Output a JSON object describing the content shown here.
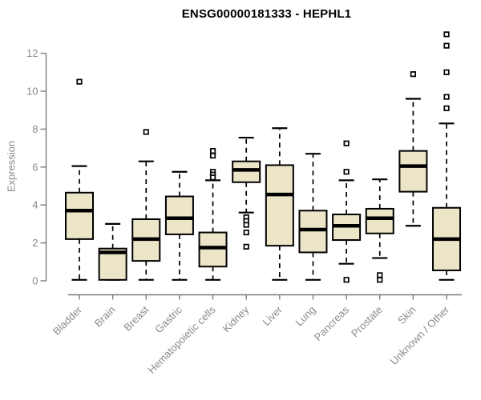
{
  "chart_data": {
    "type": "boxplot",
    "title": "ENSG00000181333 - HEPHL1",
    "ylabel": "Expression",
    "xlabel": "",
    "ylim": [
      0,
      13.2
    ],
    "yticks": [
      0,
      2,
      4,
      6,
      8,
      10,
      12
    ],
    "grid": false,
    "legend": "none",
    "categories": [
      "Bladder",
      "Brain",
      "Breast",
      "Gastric",
      "Hematopoietic cells",
      "Kidney",
      "Liver",
      "Lung",
      "Pancreas",
      "Prostate",
      "Skin",
      "Unknown / Other"
    ],
    "boxes": [
      {
        "category": "Bladder",
        "whisker_low": 0.05,
        "q1": 2.2,
        "median": 3.7,
        "q3": 4.65,
        "whisker_high": 6.05,
        "outliers": [
          10.5
        ]
      },
      {
        "category": "Brain",
        "whisker_low": 0.05,
        "q1": 0.05,
        "median": 1.5,
        "q3": 1.7,
        "whisker_high": 3.0,
        "outliers": []
      },
      {
        "category": "Breast",
        "whisker_low": 0.05,
        "q1": 1.05,
        "median": 2.2,
        "q3": 3.25,
        "whisker_high": 6.3,
        "outliers": [
          7.85
        ]
      },
      {
        "category": "Gastric",
        "whisker_low": 0.05,
        "q1": 2.45,
        "median": 3.3,
        "q3": 4.45,
        "whisker_high": 5.75,
        "outliers": []
      },
      {
        "category": "Hematopoietic cells",
        "whisker_low": 0.05,
        "q1": 0.75,
        "median": 1.75,
        "q3": 2.55,
        "whisker_high": 5.3,
        "outliers": [
          6.85,
          6.6,
          5.75,
          5.6,
          5.45
        ]
      },
      {
        "category": "Kidney",
        "whisker_low": 3.6,
        "q1": 5.2,
        "median": 5.85,
        "q3": 6.3,
        "whisker_high": 7.55,
        "outliers": [
          3.35,
          3.15,
          2.95,
          2.55,
          1.8
        ]
      },
      {
        "category": "Liver",
        "whisker_low": 0.05,
        "q1": 1.85,
        "median": 4.55,
        "q3": 6.1,
        "whisker_high": 8.05,
        "outliers": []
      },
      {
        "category": "Lung",
        "whisker_low": 0.05,
        "q1": 1.5,
        "median": 2.7,
        "q3": 3.7,
        "whisker_high": 6.7,
        "outliers": []
      },
      {
        "category": "Pancreas",
        "whisker_low": 0.9,
        "q1": 2.15,
        "median": 2.9,
        "q3": 3.5,
        "whisker_high": 5.3,
        "outliers": [
          7.25,
          5.75,
          0.05
        ]
      },
      {
        "category": "Prostate",
        "whisker_low": 1.2,
        "q1": 2.5,
        "median": 3.3,
        "q3": 3.8,
        "whisker_high": 5.35,
        "outliers": [
          0.3,
          0.05
        ]
      },
      {
        "category": "Skin",
        "whisker_low": 2.9,
        "q1": 4.7,
        "median": 6.05,
        "q3": 6.85,
        "whisker_high": 9.6,
        "outliers": [
          10.9
        ]
      },
      {
        "category": "Unknown / Other",
        "whisker_low": 0.05,
        "q1": 0.55,
        "median": 2.2,
        "q3": 3.85,
        "whisker_high": 8.3,
        "outliers": [
          13.0,
          12.4,
          11.0,
          9.7,
          9.1
        ]
      }
    ],
    "colors": {
      "box_fill": "#ece5c8",
      "box_stroke": "#000000",
      "median": "#000000",
      "whisker": "#000000",
      "outlier_stroke": "#000000",
      "axis": "#7b7b7b",
      "tick_labels": "#8a8a8a",
      "title": "#000000",
      "background": "#ffffff"
    }
  }
}
